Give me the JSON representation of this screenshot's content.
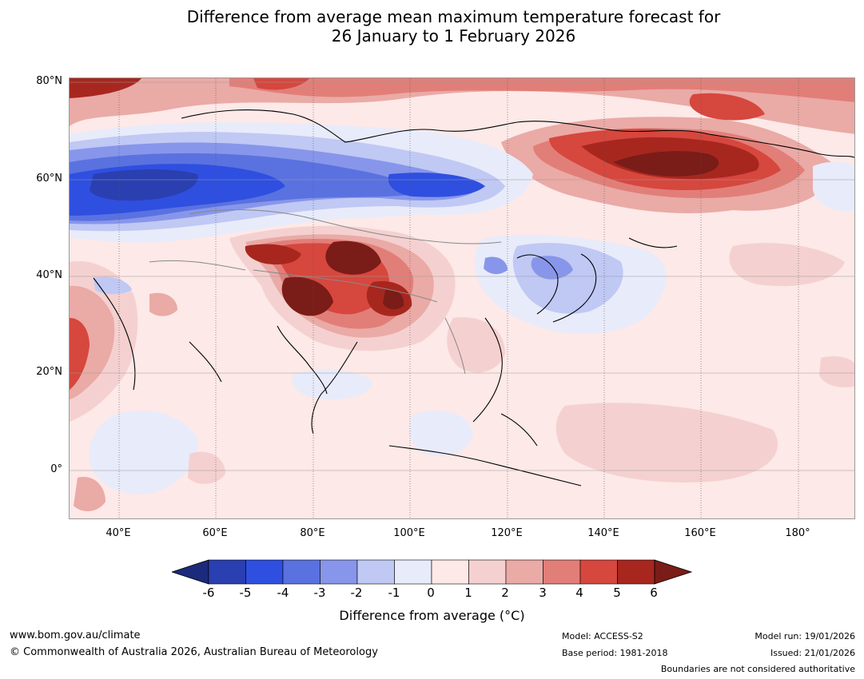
{
  "title": {
    "line1": "Difference from average mean maximum temperature forecast for",
    "line2": "26 January to 1 February 2026"
  },
  "axes": {
    "lat_labels": [
      "80°N",
      "60°N",
      "40°N",
      "20°N",
      "0°"
    ],
    "lon_labels": [
      "40°E",
      "60°E",
      "80°E",
      "100°E",
      "120°E",
      "140°E",
      "160°E",
      "180°"
    ]
  },
  "legend": {
    "ticks": [
      "-6",
      "-5",
      "-4",
      "-3",
      "-2",
      "-1",
      "0",
      "1",
      "2",
      "3",
      "4",
      "5",
      "6"
    ],
    "colors": [
      "#1b2a7a",
      "#2a3fb0",
      "#2f4fe0",
      "#5a72e0",
      "#8796ea",
      "#c0c8f4",
      "#e8ebfa",
      "#fce9e8",
      "#f4d1d0",
      "#eaaaa6",
      "#e27e78",
      "#d6473e",
      "#a7271f",
      "#7a1c18"
    ],
    "label": "Difference from average (°C)"
  },
  "footer": {
    "website": "www.bom.gov.au/climate",
    "copyright": "© Commonwealth of Australia 2026, Australian Bureau of Meteorology",
    "model": "Model: ACCESS-S2",
    "base_period": "Base period: 1981-2018",
    "model_run": "Model run: 19/01/2026",
    "issued": "Issued: 21/01/2026",
    "disclaimer": "Boundaries are not considered authoritative"
  }
}
